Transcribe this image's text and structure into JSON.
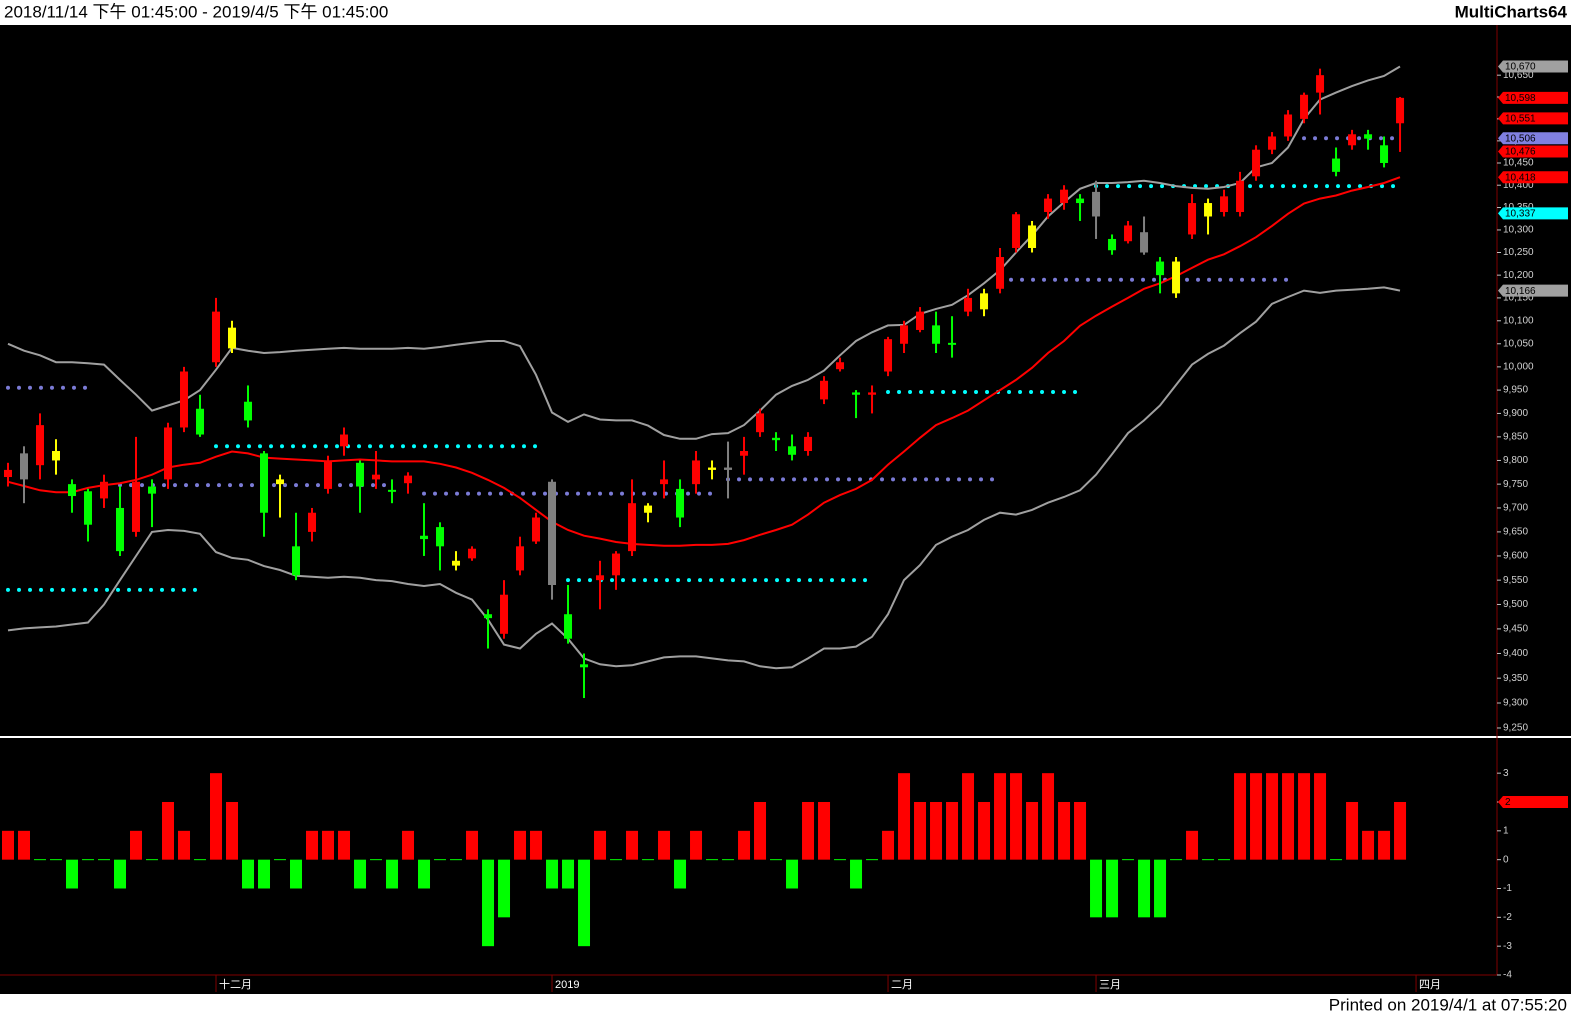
{
  "header": {
    "range": "2018/11/14 下午 01:45:00 - 2019/4/5 下午 01:45:00",
    "app": "MultiCharts64"
  },
  "footer": "Printed on 2019/4/1 at 07:55:20",
  "chart_data": [
    {
      "type": "candlestick",
      "log_scale": true,
      "ylim": [
        9236,
        10766
      ],
      "xlim": [
        -0.5,
        93.06
      ],
      "yticks": [
        {
          "value": 9250,
          "label": "9,250"
        },
        {
          "value": 9300,
          "label": "9,300"
        },
        {
          "value": 9350,
          "label": "9,350"
        },
        {
          "value": 9400,
          "label": "9,400"
        },
        {
          "value": 9450,
          "label": "9,450"
        },
        {
          "value": 9500,
          "label": "9,500"
        },
        {
          "value": 9550,
          "label": "9,550"
        },
        {
          "value": 9600,
          "label": "9,600"
        },
        {
          "value": 9650,
          "label": "9,650"
        },
        {
          "value": 9700,
          "label": "9,700"
        },
        {
          "value": 9750,
          "label": "9,750"
        },
        {
          "value": 9800,
          "label": "9,800"
        },
        {
          "value": 9850,
          "label": "9,850"
        },
        {
          "value": 9900,
          "label": "9,900"
        },
        {
          "value": 9950,
          "label": "9,950"
        },
        {
          "value": 10000,
          "label": "10,000"
        },
        {
          "value": 10050,
          "label": "10,050"
        },
        {
          "value": 10100,
          "label": "10,100"
        },
        {
          "value": 10150,
          "label": "10,150"
        },
        {
          "value": 10200,
          "label": "10,200"
        },
        {
          "value": 10250,
          "label": "10,250"
        },
        {
          "value": 10300,
          "label": "10,300"
        },
        {
          "value": 10350,
          "label": "10,350"
        },
        {
          "value": 10400,
          "label": "10,400"
        },
        {
          "value": 10450,
          "label": "10,450"
        },
        {
          "value": 10500,
          "label": "10,500"
        },
        {
          "value": 10550,
          "label": "10,550"
        },
        {
          "value": 10600,
          "label": "10,600"
        },
        {
          "value": 10650,
          "label": "10,650"
        }
      ],
      "open": [
        9765,
        9760,
        9790,
        9800,
        9750,
        9735,
        9720,
        9700,
        9650,
        9745,
        9760,
        9870,
        9910,
        10010,
        10040,
        9925,
        9815,
        9760,
        9620,
        9650,
        9740,
        9830,
        9795,
        9760,
        9738,
        9752,
        9642,
        9660,
        9590,
        9595,
        9480,
        9440,
        9570,
        9630,
        9755,
        9480,
        9378,
        9550,
        9560,
        9610,
        9690,
        9750,
        9740,
        9750,
        9780,
        9785,
        9810,
        9860,
        9848,
        9830,
        9820,
        9930,
        9995,
        9945,
        9940,
        9990,
        10050,
        10080,
        10090,
        10052,
        10120,
        10125,
        10170,
        10260,
        10260,
        10340,
        10360,
        10370,
        10385,
        10280,
        10275,
        10295,
        10230,
        10230,
        10290,
        10330,
        10340,
        10340,
        10420,
        10480,
        10510,
        10550,
        10610,
        10460,
        10490,
        10515,
        10490,
        10540
      ],
      "high": [
        9795,
        9830,
        9900,
        9845,
        9760,
        9740,
        9770,
        9745,
        9850,
        9760,
        9880,
        10000,
        9940,
        10150,
        10100,
        9960,
        9820,
        9770,
        9690,
        9700,
        9810,
        9870,
        9800,
        9820,
        9760,
        9775,
        9710,
        9670,
        9610,
        9620,
        9490,
        9550,
        9640,
        9690,
        9760,
        9540,
        9400,
        9590,
        9610,
        9760,
        9710,
        9800,
        9760,
        9820,
        9800,
        9840,
        9850,
        9910,
        9860,
        9855,
        9860,
        9980,
        10020,
        9950,
        9960,
        10065,
        10100,
        10130,
        10120,
        10110,
        10170,
        10170,
        10260,
        10340,
        10320,
        10380,
        10400,
        10380,
        10410,
        10290,
        10320,
        10330,
        10240,
        10240,
        10380,
        10370,
        10390,
        10430,
        10490,
        10520,
        10570,
        10610,
        10665,
        10485,
        10525,
        10525,
        10510,
        10600
      ],
      "low": [
        9745,
        9710,
        9760,
        9770,
        9690,
        9630,
        9700,
        9600,
        9640,
        9660,
        9740,
        9860,
        9850,
        10000,
        10030,
        9870,
        9640,
        9680,
        9550,
        9630,
        9730,
        9810,
        9690,
        9740,
        9710,
        9730,
        9600,
        9570,
        9570,
        9590,
        9410,
        9430,
        9560,
        9625,
        9510,
        9420,
        9310,
        9490,
        9530,
        9600,
        9670,
        9720,
        9660,
        9730,
        9760,
        9720,
        9770,
        9850,
        9820,
        9800,
        9810,
        9920,
        9990,
        9890,
        9900,
        9980,
        10030,
        10075,
        10030,
        10020,
        10110,
        10110,
        10160,
        10250,
        10250,
        10325,
        10345,
        10320,
        10280,
        10245,
        10270,
        10245,
        10160,
        10150,
        10280,
        10290,
        10330,
        10330,
        10410,
        10470,
        10500,
        10540,
        10560,
        10420,
        10480,
        10480,
        10440,
        10475
      ],
      "close": [
        9780,
        9815,
        9875,
        9820,
        9725,
        9665,
        9755,
        9610,
        9755,
        9730,
        9870,
        9990,
        9855,
        10120,
        10085,
        9885,
        9690,
        9750,
        9560,
        9690,
        9800,
        9855,
        9745,
        9770,
        9735,
        9768,
        9635,
        9620,
        9580,
        9615,
        9472,
        9520,
        9620,
        9680,
        9540,
        9430,
        9372,
        9560,
        9605,
        9710,
        9705,
        9760,
        9680,
        9800,
        9785,
        9780,
        9820,
        9900,
        9843,
        9812,
        9850,
        9970,
        10010,
        9940,
        9945,
        10060,
        10090,
        10120,
        10050,
        10048,
        10150,
        10160,
        10240,
        10335,
        10310,
        10370,
        10390,
        10360,
        10330,
        10255,
        10310,
        10250,
        10200,
        10160,
        10360,
        10360,
        10375,
        10410,
        10480,
        10510,
        10560,
        10605,
        10650,
        10430,
        10515,
        10505,
        10450,
        10598
      ],
      "colors": [
        "#ff0000",
        "#808080",
        "#ff0000",
        "#ffff00",
        "#00ff00",
        "#00ff00",
        "#ff0000",
        "#00ff00",
        "#ff0000",
        "#00ff00",
        "#ff0000",
        "#ff0000",
        "#00ff00",
        "#ff0000",
        "#ffff00",
        "#00ff00",
        "#00ff00",
        "#ffff00",
        "#00ff00",
        "#ff0000",
        "#ff0000",
        "#ff0000",
        "#00ff00",
        "#ff0000",
        "#00ff00",
        "#ff0000",
        "#00ff00",
        "#00ff00",
        "#ffff00",
        "#ff0000",
        "#00ff00",
        "#ff0000",
        "#ff0000",
        "#ff0000",
        "#808080",
        "#00ff00",
        "#00ff00",
        "#ff0000",
        "#ff0000",
        "#ff0000",
        "#ffff00",
        "#ff0000",
        "#00ff00",
        "#ff0000",
        "#ffff00",
        "#808080",
        "#ff0000",
        "#ff0000",
        "#00ff00",
        "#00ff00",
        "#ff0000",
        "#ff0000",
        "#ff0000",
        "#00ff00",
        "#ff0000",
        "#ff0000",
        "#ff0000",
        "#ff0000",
        "#00ff00",
        "#00ff00",
        "#ff0000",
        "#ffff00",
        "#ff0000",
        "#ff0000",
        "#ffff00",
        "#ff0000",
        "#ff0000",
        "#00ff00",
        "#808080",
        "#00ff00",
        "#ff0000",
        "#808080",
        "#00ff00",
        "#ffff00",
        "#ff0000",
        "#ffff00",
        "#ff0000",
        "#ff0000",
        "#ff0000",
        "#ff0000",
        "#ff0000",
        "#ff0000",
        "#ff0000",
        "#00ff00",
        "#ff0000",
        "#00ff00",
        "#00ff00",
        "#ff0000"
      ],
      "lines": [
        {
          "color": "#a0a0a0",
          "values": [
            10050,
            10035,
            10025,
            10010,
            10010,
            10008,
            10005,
            9972,
            9940,
            9906,
            9917,
            9928,
            9950,
            9994,
            10041,
            10035,
            10030,
            10032,
            10035,
            10037,
            10039,
            10041,
            10039,
            10039,
            10039,
            10041,
            10039,
            10043,
            10048,
            10052,
            10056,
            10056,
            10045,
            9983,
            9902,
            9882,
            9898,
            9887,
            9885,
            9885,
            9874,
            9854,
            9846,
            9846,
            9856,
            9858,
            9875,
            9906,
            9940,
            9959,
            9972,
            9992,
            10025,
            10056,
            10075,
            10090,
            10091,
            10115,
            10126,
            10135,
            10156,
            10182,
            10211,
            10250,
            10288,
            10330,
            10362,
            10392,
            10405,
            10405,
            10407,
            10410,
            10405,
            10398,
            10394,
            10392,
            10396,
            10405,
            10440,
            10450,
            10485,
            10550,
            10594,
            10610,
            10625,
            10638,
            10648,
            10670
          ]
        },
        {
          "color": "#ff0000",
          "values": [
            9755,
            9746,
            9737,
            9733,
            9733,
            9742,
            9748,
            9752,
            9759,
            9770,
            9785,
            9791,
            9795,
            9808,
            9819,
            9815,
            9806,
            9804,
            9802,
            9800,
            9798,
            9800,
            9802,
            9800,
            9798,
            9798,
            9798,
            9793,
            9785,
            9774,
            9759,
            9742,
            9721,
            9696,
            9671,
            9654,
            9642,
            9636,
            9629,
            9625,
            9623,
            9621,
            9621,
            9623,
            9623,
            9625,
            9633,
            9644,
            9654,
            9665,
            9686,
            9711,
            9727,
            9740,
            9759,
            9791,
            9819,
            9848,
            9875,
            9890,
            9906,
            9928,
            9950,
            9972,
            9998,
            10030,
            10056,
            10089,
            10111,
            10131,
            10150,
            10170,
            10182,
            10198,
            10216,
            10234,
            10246,
            10264,
            10284,
            10309,
            10336,
            10359,
            10370,
            10377,
            10388,
            10396,
            10405,
            10418
          ]
        },
        {
          "color": "#a0a0a0",
          "values": [
            9447,
            9451,
            9453,
            9455,
            9459,
            9463,
            9500,
            9550,
            9600,
            9650,
            9654,
            9652,
            9646,
            9608,
            9596,
            9592,
            9579,
            9571,
            9559,
            9557,
            9555,
            9557,
            9555,
            9550,
            9548,
            9542,
            9538,
            9542,
            9524,
            9510,
            9469,
            9418,
            9410,
            9440,
            9461,
            9430,
            9390,
            9378,
            9374,
            9376,
            9384,
            9392,
            9394,
            9394,
            9390,
            9386,
            9384,
            9374,
            9370,
            9372,
            9390,
            9410,
            9410,
            9414,
            9434,
            9480,
            9550,
            9581,
            9623,
            9640,
            9654,
            9675,
            9690,
            9686,
            9696,
            9711,
            9723,
            9737,
            9770,
            9813,
            9858,
            9885,
            9917,
            9961,
            10005,
            10028,
            10046,
            10073,
            10098,
            10137,
            10152,
            10166,
            10161,
            10166,
            10168,
            10170,
            10173,
            10166
          ]
        }
      ],
      "levels": [
        {
          "value": 9955,
          "from": 0,
          "to": 5,
          "color": "#7b7bd6"
        },
        {
          "value": 9530,
          "from": 0,
          "to": 12,
          "color": "#00ffff"
        },
        {
          "value": 9748,
          "from": 7,
          "to": 24,
          "color": "#7b7bd6"
        },
        {
          "value": 9830,
          "from": 13,
          "to": 33,
          "color": "#00ffff"
        },
        {
          "value": 9730,
          "from": 26,
          "to": 44,
          "color": "#7b7bd6"
        },
        {
          "value": 9550,
          "from": 35,
          "to": 54,
          "color": "#00ffff"
        },
        {
          "value": 9760,
          "from": 45,
          "to": 62,
          "color": "#7b7bd6"
        },
        {
          "value": 9946,
          "from": 55,
          "to": 67,
          "color": "#00ffff"
        },
        {
          "value": 10190,
          "from": 62,
          "to": 80,
          "color": "#7b7bd6"
        },
        {
          "value": 10398,
          "from": 68,
          "to": 87,
          "color": "#00ffff"
        },
        {
          "value": 10506,
          "from": 81,
          "to": 87,
          "color": "#7b7bd6"
        }
      ],
      "markers": [
        {
          "value": 10670,
          "label": "10,670",
          "color": "#a0a0a0"
        },
        {
          "value": 10598,
          "label": "10,598",
          "color": "#ff0000"
        },
        {
          "value": 10551,
          "label": "10,551",
          "color": "#ff0000"
        },
        {
          "value": 10506,
          "label": "10,506",
          "color": "#8080e0"
        },
        {
          "value": 10476,
          "label": "10,476",
          "color": "#ff0000"
        },
        {
          "value": 10418,
          "label": "10,418",
          "color": "#ff0000"
        },
        {
          "value": 10337,
          "label": "10,337",
          "color": "#00ffff"
        },
        {
          "value": 10166,
          "label": "10,166",
          "color": "#a0a0a0"
        }
      ]
    },
    {
      "type": "bar",
      "ylim": [
        -4,
        4.15
      ],
      "xlim": [
        -0.5,
        93.06
      ],
      "yticks": [
        -4,
        -3,
        -2,
        -1,
        0,
        1,
        2,
        3
      ],
      "values": [
        1,
        1,
        0,
        0,
        -1,
        0,
        0,
        -1,
        1,
        0,
        2,
        1,
        0,
        3,
        2,
        -1,
        -1,
        0,
        -1,
        1,
        1,
        1,
        -1,
        0,
        -1,
        1,
        -1,
        0,
        0,
        1,
        -3,
        -2,
        1,
        1,
        -1,
        -1,
        -3,
        1,
        0,
        1,
        0,
        1,
        -1,
        1,
        0,
        0,
        1,
        2,
        0,
        -1,
        2,
        2,
        0,
        -1,
        0,
        1,
        3,
        2,
        2,
        2,
        3,
        2,
        3,
        3,
        2,
        3,
        2,
        2,
        -2,
        -2,
        0,
        -2,
        -2,
        0,
        1,
        0,
        0,
        3,
        3,
        3,
        3,
        3,
        3,
        0,
        2,
        1,
        1,
        2
      ],
      "colors": {
        "positive": "#ff0000",
        "negative": "#00ff00"
      },
      "markers": [
        {
          "value": 2,
          "label": "2",
          "color": "#ff0000"
        }
      ],
      "xticks": [
        {
          "value": 13,
          "label": "十二月"
        },
        {
          "value": 34,
          "label": "2019"
        },
        {
          "value": 55,
          "label": "二月"
        },
        {
          "value": 68,
          "label": "三月"
        },
        {
          "value": 88,
          "label": "四月"
        }
      ]
    }
  ]
}
